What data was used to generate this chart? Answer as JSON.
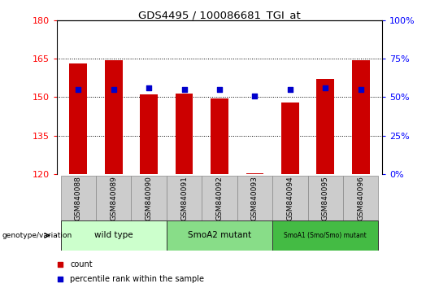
{
  "title": "GDS4495 / 100086681_TGI_at",
  "samples": [
    "GSM840088",
    "GSM840089",
    "GSM840090",
    "GSM840091",
    "GSM840092",
    "GSM840093",
    "GSM840094",
    "GSM840095",
    "GSM840096"
  ],
  "counts": [
    163.0,
    164.5,
    151.0,
    151.5,
    149.5,
    120.5,
    148.0,
    157.0,
    164.5
  ],
  "pct_values": [
    55,
    55,
    56,
    55,
    55,
    51,
    55,
    56,
    55
  ],
  "ylim": [
    120,
    180
  ],
  "yticks": [
    120,
    135,
    150,
    165,
    180
  ],
  "y2lim": [
    0,
    100
  ],
  "y2ticks": [
    0,
    25,
    50,
    75,
    100
  ],
  "bar_color": "#cc0000",
  "dot_color": "#0000cc",
  "bar_width": 0.5,
  "groups": [
    {
      "label": "wild type",
      "indices": [
        0,
        1,
        2
      ],
      "color": "#ccffcc"
    },
    {
      "label": "SmoA2 mutant",
      "indices": [
        3,
        4,
        5
      ],
      "color": "#88dd88"
    },
    {
      "label": "SmoA1 (Smo/Smo) mutant",
      "indices": [
        6,
        7,
        8
      ],
      "color": "#44bb44"
    }
  ],
  "legend_count_label": "count",
  "legend_pct_label": "percentile rank within the sample",
  "xlabel_genotype": "genotype/variation",
  "label_bg": "#cccccc",
  "plot_bg": "#ffffff"
}
